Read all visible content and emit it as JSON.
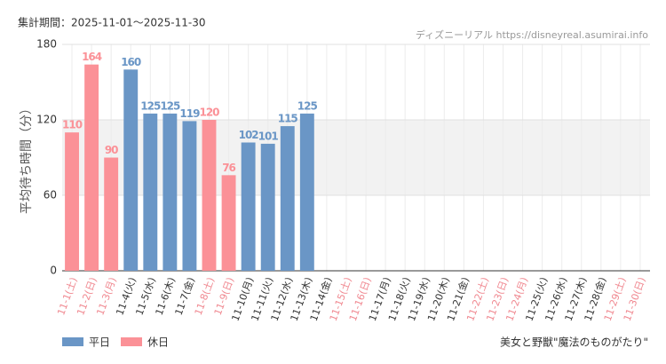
{
  "chart_data": {
    "type": "bar",
    "period": "集計期間：2025-11-01～2025-11-30",
    "source": "ディズニーリアル https://disneyreal.asumirai.info",
    "ylabel": "平均待ち時間（分）",
    "footer": "美女と野獣\"魔法のものがたり\"",
    "categories": [
      "11-1(土)",
      "11-2(日)",
      "11-3(月)",
      "11-4(火)",
      "11-5(水)",
      "11-6(木)",
      "11-7(金)",
      "11-8(土)",
      "11-9(日)",
      "11-10(月)",
      "11-11(火)",
      "11-12(水)",
      "11-13(木)",
      "11-14(金)",
      "11-15(土)",
      "11-16(日)",
      "11-17(月)",
      "11-18(火)",
      "11-19(水)",
      "11-20(木)",
      "11-21(金)",
      "11-22(土)",
      "11-23(日)",
      "11-24(月)",
      "11-25(火)",
      "11-26(水)",
      "11-27(木)",
      "11-28(金)",
      "11-29(土)",
      "11-30(日)"
    ],
    "label_colors": [
      "#f08890",
      "#f08890",
      "#f08890",
      "#333333",
      "#333333",
      "#333333",
      "#333333",
      "#f08890",
      "#f08890",
      "#333333",
      "#333333",
      "#333333",
      "#333333",
      "#333333",
      "#f08890",
      "#f08890",
      "#333333",
      "#333333",
      "#333333",
      "#333333",
      "#333333",
      "#f08890",
      "#f08890",
      "#f08890",
      "#333333",
      "#333333",
      "#333333",
      "#333333",
      "#f08890",
      "#f08890"
    ],
    "series": [
      {
        "name": "平日",
        "color": "#6a96c6",
        "values": [
          null,
          null,
          null,
          160,
          125,
          125,
          119,
          null,
          null,
          102,
          101,
          115,
          125,
          null,
          null,
          null,
          null,
          null,
          null,
          null,
          null,
          null,
          null,
          null,
          null,
          null,
          null,
          null,
          null,
          null
        ]
      },
      {
        "name": "休日",
        "color": "#fb9197",
        "values": [
          110,
          164,
          90,
          null,
          null,
          null,
          null,
          120,
          76,
          null,
          null,
          null,
          null,
          null,
          null,
          null,
          null,
          null,
          null,
          null,
          null,
          null,
          null,
          null,
          null,
          null,
          null,
          null,
          null,
          null
        ]
      }
    ],
    "ylim": [
      0,
      180
    ],
    "yticks": [
      0,
      60,
      120,
      180
    ],
    "band": [
      60,
      120
    ],
    "grid": true
  }
}
